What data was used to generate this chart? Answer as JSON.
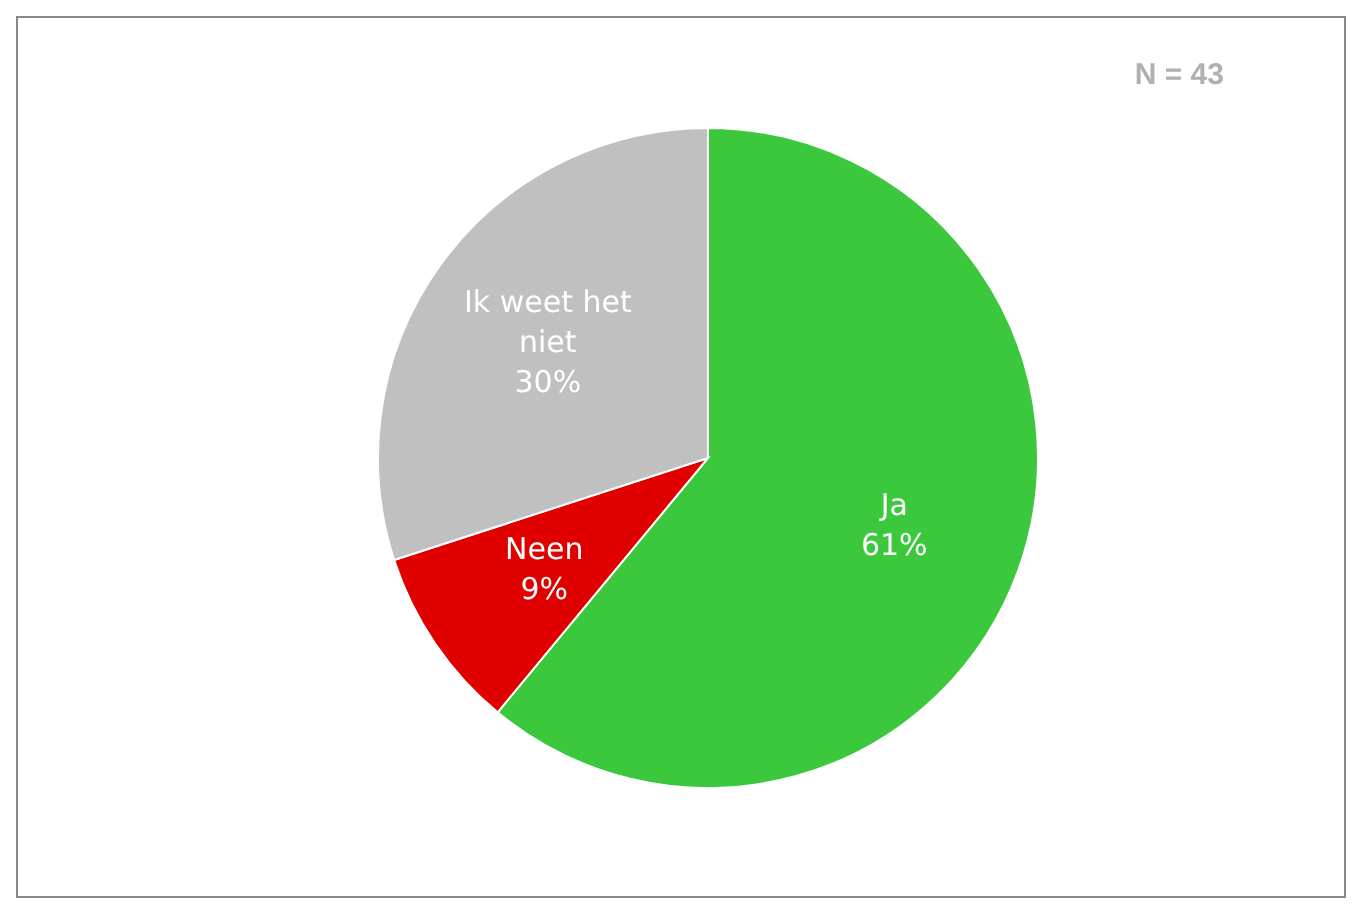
{
  "chart_data": {
    "type": "pie",
    "categories": [
      "Ja",
      "Neen",
      "Ik weet het niet"
    ],
    "values": [
      61,
      9,
      30
    ],
    "value_labels": [
      "61%",
      "9%",
      "30%"
    ],
    "colors": [
      "#3cc83c",
      "#e00000",
      "#c0c0c0"
    ],
    "annotations": [
      "N = 43"
    ],
    "legend": false
  }
}
